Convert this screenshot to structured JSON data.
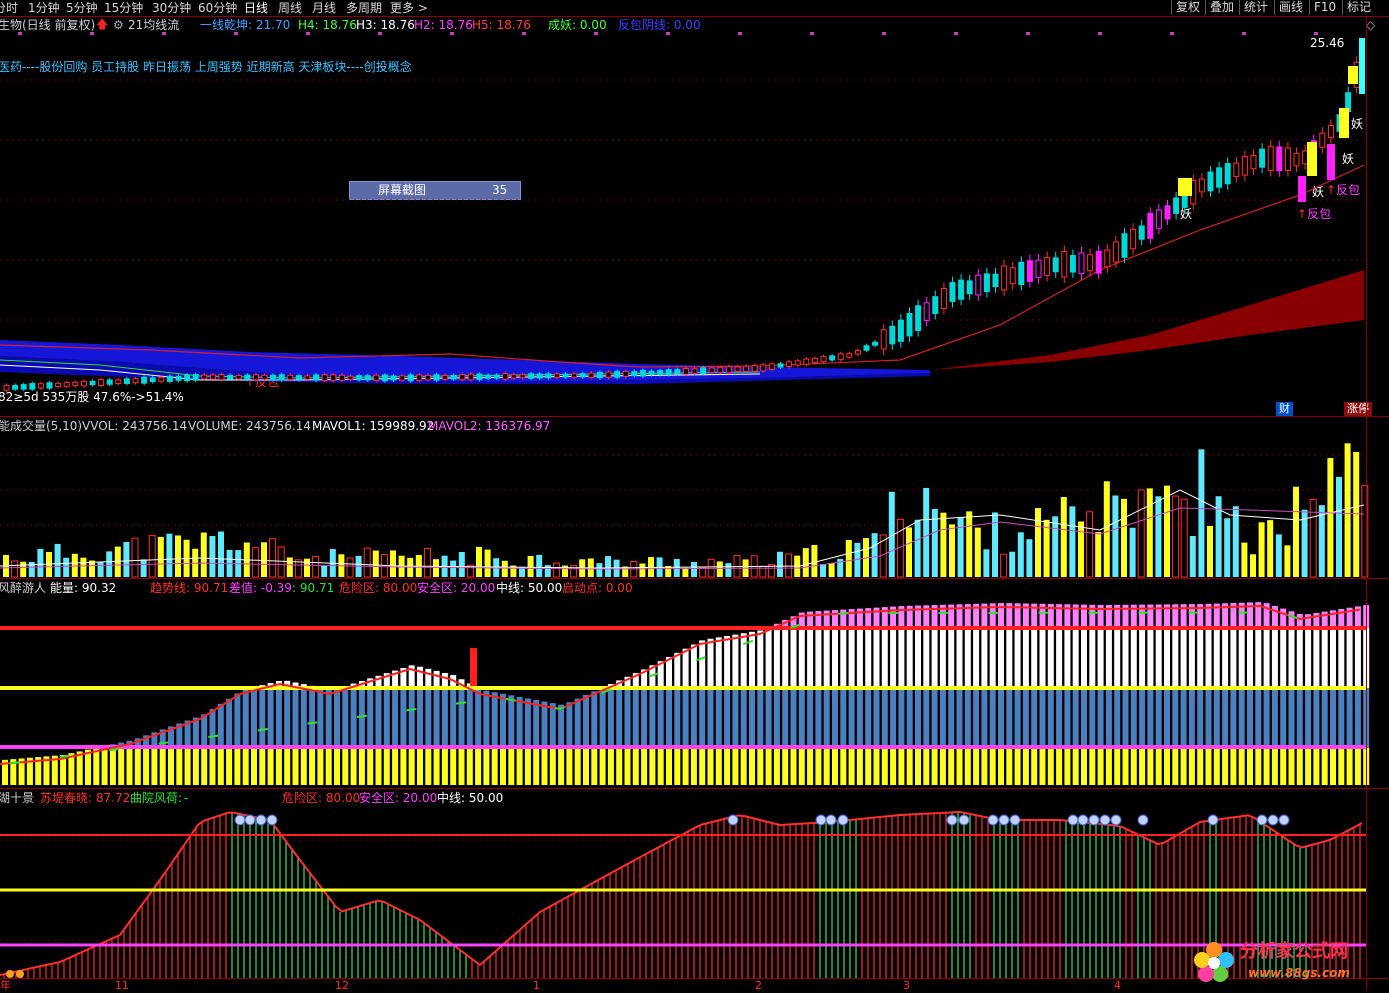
{
  "toolbar": {
    "periods": [
      "分时",
      "1分钟",
      "5分钟",
      "15分钟",
      "30分钟",
      "60分钟",
      "日线",
      "周线",
      "月线",
      "多周期",
      "更多 >"
    ],
    "active_period": "日线",
    "right_buttons": [
      "复权",
      "叠加",
      "统计",
      "画线",
      "F10",
      "标记"
    ],
    "diamond_icon": "diamond-icon"
  },
  "main_panel": {
    "title": "生物(日线 前复权)",
    "indicator_name": "21均线流",
    "legend": [
      {
        "label": "一线乾坤: 21.70",
        "color": "#40a0ff"
      },
      {
        "label": "H4: 18.76",
        "color": "#40ff40"
      },
      {
        "label": "H3: 18.76",
        "color": "#ffffff"
      },
      {
        "label": "H2: 18.76",
        "color": "#ff40ff"
      },
      {
        "label": "H5: 18.76",
        "color": "#ff4040"
      },
      {
        "label": "成妖: 0.00",
        "color": "#40ff40"
      },
      {
        "label": "反包阴线: 0.00",
        "color": "#4040ff"
      }
    ],
    "concept_text": "医药----股份回购 员工持股 昨日振荡 上周强势 近期新高 天津板块----创投概念",
    "price_high_label": "25.46",
    "chip_text": "82≥5d 535万股 47.6%->51.4%",
    "markers": {
      "fanbao": "反包",
      "yao": "妖"
    },
    "badges": {
      "cai": "财",
      "zhangting": "涨停"
    },
    "screenshot_box": {
      "label": "屏幕截图",
      "value": "35"
    }
  },
  "volume_panel": {
    "title": "能成交量(5,10)",
    "vvol": "VVOL: 243756.14",
    "volume": "VOLUME: 243756.14",
    "mavol1": "MAVOL1: 159989.92",
    "mavol2": "MAVOL2: 136376.97"
  },
  "trend_panel": {
    "name": "风醉游人",
    "energy": "能量: 90.32",
    "trend": "趋势线: 90.71",
    "diff": "差值: -0.39",
    "diff2": ": 90.71",
    "danger": "危险区: 80.00",
    "safe": "安全区: 20.00",
    "mid": "中线: 50.00",
    "start": "启动点: 0.00"
  },
  "lake_panel": {
    "name": "湖十景",
    "su": "苏堤春晓: 87.72",
    "qu": "曲院风荷:",
    "qu_dash": "-",
    "danger": "危险区: 80.00",
    "safe": "安全区: 20.00",
    "mid": "中线: 50.00"
  },
  "date_axis": [
    "年",
    "11",
    "12",
    "1",
    "2",
    "3",
    "4"
  ],
  "watermark": {
    "name": "分析家公式网",
    "url": "www.88gs.com"
  },
  "colors": {
    "bg": "#000000",
    "grid": "#7a0000",
    "up": "#ff3030",
    "down": "#00d0d0",
    "yellow": "#ffff00",
    "magenta": "#ff40ff",
    "blue": "#4a7fc0",
    "red": "#ff2020",
    "green": "#30e030"
  }
}
